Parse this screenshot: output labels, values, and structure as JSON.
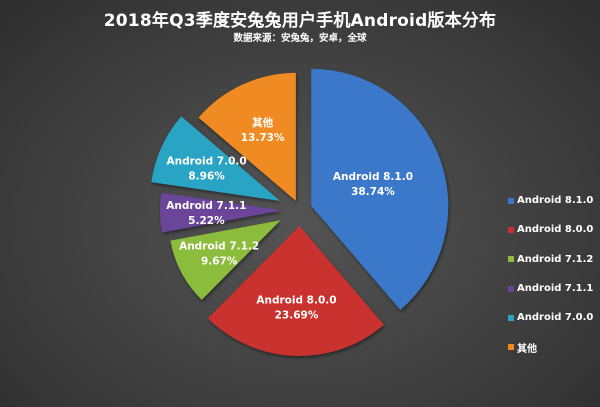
{
  "header": {
    "title": "2018年Q3季度安兔兔用户手机Android版本分布",
    "subtitle": "数据来源：安兔兔，安卓，全球"
  },
  "slices": [
    {
      "name": "Android 8.1.0",
      "value_label": "38.74%",
      "color": "#3a78c9"
    },
    {
      "name": "Android 8.0.0",
      "value_label": "23.69%",
      "color": "#c9302f"
    },
    {
      "name": "Android 7.1.2",
      "value_label": "9.67%",
      "color": "#8cbc3a"
    },
    {
      "name": "Android 7.1.1",
      "value_label": "5.22%",
      "color": "#6a449a"
    },
    {
      "name": "Android 7.0.0",
      "value_label": "8.96%",
      "color": "#2aa4c4"
    },
    {
      "name": "其他",
      "value_label": "13.73%",
      "color": "#f08a20"
    }
  ],
  "legend": {
    "items": [
      {
        "label": "Android 8.1.0",
        "color": "#3a78c9"
      },
      {
        "label": "Android 8.0.0",
        "color": "#c9302f"
      },
      {
        "label": "Android 7.1.2",
        "color": "#8cbc3a"
      },
      {
        "label": "Android 7.1.1",
        "color": "#6a449a"
      },
      {
        "label": "Android 7.0.0",
        "color": "#2aa4c4"
      },
      {
        "label": "其他",
        "color": "#f08a20"
      }
    ]
  },
  "chart_data": {
    "type": "pie",
    "title": "2018年Q3季度安兔兔用户手机Android版本分布",
    "subtitle": "数据来源：安兔兔，安卓，全球",
    "categories": [
      "Android 8.1.0",
      "Android 8.0.0",
      "Android 7.1.2",
      "Android 7.1.1",
      "Android 7.0.0",
      "其他"
    ],
    "values": [
      38.74,
      23.69,
      9.67,
      5.22,
      8.96,
      13.73
    ],
    "unit": "%",
    "exploded": true,
    "legend_position": "right"
  }
}
